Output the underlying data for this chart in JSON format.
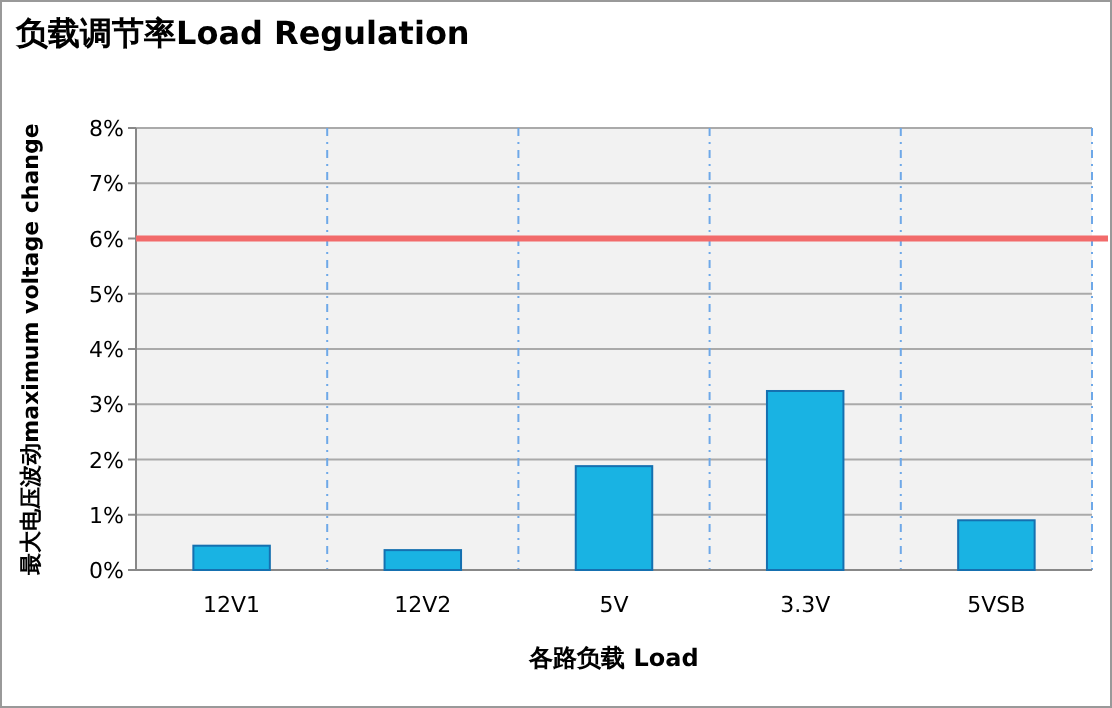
{
  "chart_data": {
    "type": "bar",
    "title": "负载调节率Load Regulation",
    "xlabel": "各路负载 Load",
    "ylabel": "最大电压波动maximum voltage change",
    "categories": [
      "12V1",
      "12V2",
      "5V",
      "3.3V",
      "5VSB"
    ],
    "values": [
      0.44,
      0.36,
      1.88,
      3.24,
      0.9
    ],
    "color": "#19b3e3",
    "ylim": [
      0,
      8
    ],
    "yticks": [
      {
        "value": 0,
        "label": "0%"
      },
      {
        "value": 1,
        "label": "1%"
      },
      {
        "value": 2,
        "label": "2%"
      },
      {
        "value": 3,
        "label": "3%"
      },
      {
        "value": 4,
        "label": "4%"
      },
      {
        "value": 5,
        "label": "5%"
      },
      {
        "value": 6,
        "label": "6%"
      },
      {
        "value": 7,
        "label": "7%"
      },
      {
        "value": 8,
        "label": "8%"
      }
    ],
    "ref_lines": [
      {
        "axis": "y",
        "value": 6,
        "color": "#f26b6b"
      }
    ],
    "grid": true
  }
}
